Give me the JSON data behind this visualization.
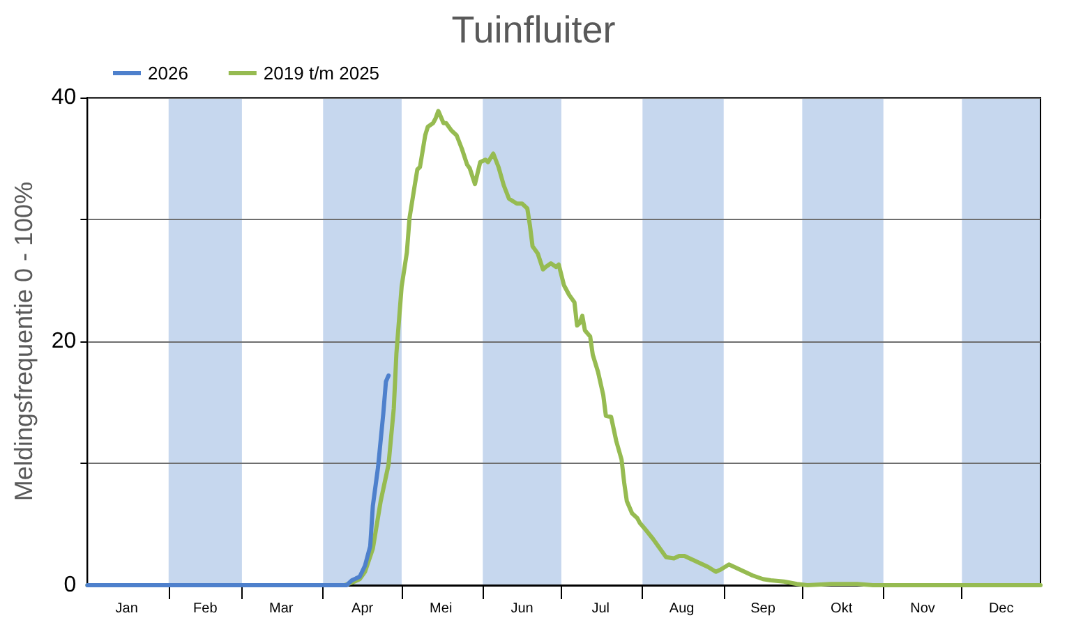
{
  "chart_data": {
    "type": "line",
    "title": "Tuinfluiter",
    "ylabel": "Meldingsfrequentie 0 - 100%",
    "series": [
      {
        "name": "2026",
        "color": "#4e80cc",
        "x": [
          "--01-01",
          "--04-10",
          "--04-12",
          "--04-15",
          "--04-17",
          "--04-19",
          "--04-20",
          "--04-22",
          "--04-24",
          "--04-25",
          "--04-26"
        ],
        "values": [
          0,
          0,
          0.4,
          0.7,
          1.6,
          3.2,
          6.5,
          9.7,
          14.1,
          16.7,
          17.2
        ]
      },
      {
        "name": "2019 t/m 2025",
        "color": "#96bb51",
        "x": [
          "--01-01",
          "--04-09",
          "--04-12",
          "--04-15",
          "--04-17",
          "--04-20",
          "--04-23",
          "--04-26",
          "--04-28",
          "--04-29",
          "--05-01",
          "--05-03",
          "--05-04",
          "--05-06",
          "--05-07",
          "--05-08",
          "--05-10",
          "--05-11",
          "--05-13",
          "--05-14",
          "--05-15",
          "--05-17",
          "--05-18",
          "--05-20",
          "--05-22",
          "--05-24",
          "--05-26",
          "--05-27",
          "--05-29",
          "--05-31",
          "--06-02",
          "--06-03",
          "--06-05",
          "--06-07",
          "--06-09",
          "--06-11",
          "--06-14",
          "--06-16",
          "--06-18",
          "--06-19",
          "--06-20",
          "--06-22",
          "--06-24",
          "--06-25",
          "--06-27",
          "--06-29",
          "--06-30",
          "--07-02",
          "--07-04",
          "--07-06",
          "--07-07",
          "--07-08",
          "--07-09",
          "--07-10",
          "--07-12",
          "--07-13",
          "--07-15",
          "--07-17",
          "--07-18",
          "--07-20",
          "--07-22",
          "--07-24",
          "--07-25",
          "--07-26",
          "--07-28",
          "--07-30",
          "--07-31",
          "--08-02",
          "--08-05",
          "--08-08",
          "--08-10",
          "--08-13",
          "--08-15",
          "--08-17",
          "--08-20",
          "--08-22",
          "--08-26",
          "--08-29",
          "--08-31",
          "--09-03",
          "--09-05",
          "--09-09",
          "--09-12",
          "--09-16",
          "--09-19",
          "--09-24",
          "--09-29",
          "--10-03",
          "--10-12",
          "--10-22",
          "--10-28",
          "--12-31"
        ],
        "values": [
          0,
          0,
          0.2,
          0.5,
          1.1,
          3.0,
          6.9,
          9.9,
          14.5,
          19.0,
          24.5,
          27.3,
          30.1,
          32.8,
          34.1,
          34.3,
          36.9,
          37.6,
          37.9,
          38.3,
          38.9,
          37.9,
          37.9,
          37.3,
          36.9,
          35.8,
          34.5,
          34.2,
          32.9,
          34.7,
          34.9,
          34.7,
          35.4,
          34.3,
          32.8,
          31.7,
          31.3,
          31.3,
          30.9,
          29.5,
          27.8,
          27.2,
          25.9,
          26.1,
          26.4,
          26.1,
          26.3,
          24.6,
          23.8,
          23.2,
          21.3,
          21.5,
          22.1,
          20.9,
          20.4,
          18.9,
          17.5,
          15.6,
          13.9,
          13.8,
          11.8,
          10.3,
          8.4,
          6.9,
          5.9,
          5.5,
          5.1,
          4.6,
          3.8,
          2.9,
          2.3,
          2.2,
          2.4,
          2.4,
          2.1,
          1.9,
          1.5,
          1.1,
          1.3,
          1.7,
          1.5,
          1.1,
          0.8,
          0.5,
          0.4,
          0.3,
          0.1,
          0,
          0.1,
          0.1,
          0,
          0
        ]
      }
    ],
    "xlim": [
      "--01-01",
      "--12-31"
    ],
    "xticks": [
      {
        "value": "--01-16",
        "label": "Jan"
      },
      {
        "value": "--02-01",
        "label": null
      },
      {
        "value": "--02-15",
        "label": "Feb"
      },
      {
        "value": "--03-01",
        "label": null
      },
      {
        "value": "--03-16",
        "label": "Mar"
      },
      {
        "value": "--04-01",
        "label": null
      },
      {
        "value": "--04-16",
        "label": "Apr"
      },
      {
        "value": "--05-01",
        "label": null
      },
      {
        "value": "--05-16",
        "label": "Mei"
      },
      {
        "value": "--06-01",
        "label": null
      },
      {
        "value": "--06-16",
        "label": "Jun"
      },
      {
        "value": "--07-01",
        "label": null
      },
      {
        "value": "--07-16",
        "label": "Jul"
      },
      {
        "value": "--08-01",
        "label": null
      },
      {
        "value": "--08-16",
        "label": "Aug"
      },
      {
        "value": "--09-01",
        "label": null
      },
      {
        "value": "--09-16",
        "label": "Sep"
      },
      {
        "value": "--10-01",
        "label": null
      },
      {
        "value": "--10-16",
        "label": "Okt"
      },
      {
        "value": "--11-01",
        "label": null
      },
      {
        "value": "--11-16",
        "label": "Nov"
      },
      {
        "value": "--12-01",
        "label": null
      },
      {
        "value": "--12-16",
        "label": "Dec"
      }
    ],
    "ylim": [
      0,
      40
    ],
    "yticks": [
      0,
      {
        "value": 10,
        "label": null
      },
      20,
      {
        "value": 30,
        "label": null
      },
      40
    ],
    "bands": [
      {
        "axis": "x",
        "from": "--02-01",
        "to": "--03-01",
        "color": "#c6d7ee"
      },
      {
        "axis": "x",
        "from": "--04-01",
        "to": "--05-01",
        "color": "#c6d7ee"
      },
      {
        "axis": "x",
        "from": "--06-01",
        "to": "--07-01",
        "color": "#c6d7ee"
      },
      {
        "axis": "x",
        "from": "--08-01",
        "to": "--09-01",
        "color": "#c6d7ee"
      },
      {
        "axis": "x",
        "from": "--10-01",
        "to": "--11-01",
        "color": "#c6d7ee"
      },
      {
        "axis": "x",
        "from": "--12-01",
        "to": "--12-31",
        "color": "#c6d7ee"
      }
    ],
    "grid": "y",
    "legend": "top left",
    "marker": "none",
    "line_style": "solid"
  }
}
